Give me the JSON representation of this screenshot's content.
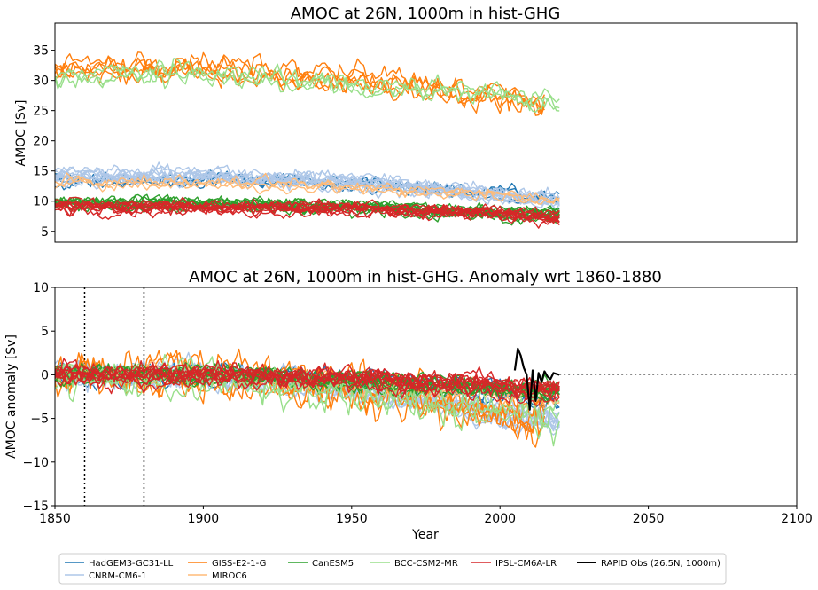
{
  "chart_data": [
    {
      "type": "line",
      "title": "AMOC at 26N, 1000m in hist-GHG",
      "xlabel": "",
      "ylabel": "AMOC [Sv]",
      "ylim": [
        3.2,
        39.5
      ],
      "yticks": [
        "5",
        "10",
        "15",
        "20",
        "25",
        "30",
        "35"
      ],
      "xlim": [
        1850,
        2100
      ],
      "grid": false,
      "series": [
        {
          "name": "HadGEM3-GC31-LL",
          "color": "#1f77b4",
          "members": 4,
          "x_start": 1850,
          "x_end": 2020,
          "levels": [
            [
              1850,
              13.2
            ],
            [
              1900,
              13.5
            ],
            [
              1950,
              12.8
            ],
            [
              2000,
              11.0
            ],
            [
              2020,
              10.0
            ]
          ],
          "noise": 1.0
        },
        {
          "name": "CNRM-CM6-1",
          "color": "#aec7e8",
          "members": 10,
          "x_start": 1850,
          "x_end": 2020,
          "levels": [
            [
              1850,
              14.0
            ],
            [
              1900,
              14.2
            ],
            [
              1950,
              13.2
            ],
            [
              2000,
              11.0
            ],
            [
              2020,
              10.0
            ]
          ],
          "noise": 1.1
        },
        {
          "name": "GISS-E2-1-G",
          "color": "#ff7f0e",
          "members": 5,
          "x_start": 1850,
          "x_end": 2015,
          "levels": [
            [
              1850,
              32.0
            ],
            [
              1900,
              32.0
            ],
            [
              1950,
              30.5
            ],
            [
              1990,
              28.0
            ],
            [
              2015,
              26.0
            ]
          ],
          "noise": 1.8
        },
        {
          "name": "MIROC6",
          "color": "#ffbb78",
          "members": 3,
          "x_start": 1850,
          "x_end": 2020,
          "levels": [
            [
              1850,
              12.8
            ],
            [
              1900,
              12.8
            ],
            [
              1950,
              12.0
            ],
            [
              2000,
              10.8
            ],
            [
              2020,
              10.2
            ]
          ],
          "noise": 0.9
        },
        {
          "name": "CanESM5",
          "color": "#2ca02c",
          "members": 10,
          "x_start": 1850,
          "x_end": 2020,
          "levels": [
            [
              1850,
              9.6
            ],
            [
              1900,
              9.5
            ],
            [
              1950,
              9.0
            ],
            [
              2000,
              8.0
            ],
            [
              2020,
              7.8
            ]
          ],
          "noise": 0.9
        },
        {
          "name": "BCC-CSM2-MR",
          "color": "#98df8a",
          "members": 3,
          "x_start": 1850,
          "x_end": 2020,
          "levels": [
            [
              1850,
              31.0
            ],
            [
              1900,
              31.5
            ],
            [
              1950,
              29.5
            ],
            [
              2000,
              28.0
            ],
            [
              2020,
              26.5
            ]
          ],
          "noise": 1.6
        },
        {
          "name": "IPSL-CM6A-LR",
          "color": "#d62728",
          "members": 10,
          "x_start": 1850,
          "x_end": 2020,
          "levels": [
            [
              1850,
              9.2
            ],
            [
              1900,
              9.0
            ],
            [
              1950,
              8.8
            ],
            [
              2000,
              8.0
            ],
            [
              2020,
              7.5
            ]
          ],
          "noise": 0.9
        }
      ]
    },
    {
      "type": "line",
      "title": "AMOC at 26N, 1000m in hist-GHG. Anomaly wrt 1860-1880",
      "xlabel": "Year",
      "ylabel": "AMOC anomaly [Sv]",
      "ylim": [
        -15,
        10
      ],
      "yticks": [
        "−15",
        "−10",
        "−5",
        "0",
        "5",
        "10"
      ],
      "xlim": [
        1850,
        2100
      ],
      "xticks": [
        "1850",
        "1900",
        "1950",
        "2000",
        "2050",
        "2100"
      ],
      "grid": false,
      "reference_period": [
        1860,
        1880
      ],
      "zero_line_from": 2020,
      "series": [
        {
          "name": "HadGEM3-GC31-LL",
          "color": "#1f77b4",
          "members": 4,
          "x_start": 1850,
          "x_end": 2020,
          "levels": [
            [
              1850,
              0
            ],
            [
              1900,
              0
            ],
            [
              1950,
              -0.5
            ],
            [
              2000,
              -2.0
            ],
            [
              2020,
              -3.0
            ]
          ],
          "noise": 1.0
        },
        {
          "name": "CNRM-CM6-1",
          "color": "#aec7e8",
          "members": 10,
          "x_start": 1850,
          "x_end": 2020,
          "levels": [
            [
              1850,
              0
            ],
            [
              1900,
              0.2
            ],
            [
              1950,
              -1.5
            ],
            [
              2000,
              -4.5
            ],
            [
              2020,
              -5.5
            ]
          ],
          "noise": 1.2
        },
        {
          "name": "GISS-E2-1-G",
          "color": "#ff7f0e",
          "members": 5,
          "x_start": 1850,
          "x_end": 2015,
          "levels": [
            [
              1850,
              0
            ],
            [
              1900,
              0
            ],
            [
              1950,
              -1.5
            ],
            [
              1995,
              -4.5
            ],
            [
              2015,
              -5.5
            ]
          ],
          "noise": 2.0
        },
        {
          "name": "MIROC6",
          "color": "#ffbb78",
          "members": 3,
          "x_start": 1850,
          "x_end": 2020,
          "levels": [
            [
              1850,
              0
            ],
            [
              1900,
              0
            ],
            [
              1950,
              -0.8
            ],
            [
              2000,
              -2.0
            ],
            [
              2020,
              -2.6
            ]
          ],
          "noise": 0.9
        },
        {
          "name": "CanESM5",
          "color": "#2ca02c",
          "members": 10,
          "x_start": 1850,
          "x_end": 2020,
          "levels": [
            [
              1850,
              0
            ],
            [
              1900,
              0
            ],
            [
              1950,
              -0.6
            ],
            [
              2000,
              -1.6
            ],
            [
              2020,
              -1.8
            ]
          ],
          "noise": 0.9
        },
        {
          "name": "BCC-CSM2-MR",
          "color": "#98df8a",
          "members": 3,
          "x_start": 1850,
          "x_end": 2020,
          "levels": [
            [
              1850,
              0
            ],
            [
              1900,
              0
            ],
            [
              1950,
              -2.0
            ],
            [
              2000,
              -3.5
            ],
            [
              2020,
              -5.0
            ]
          ],
          "noise": 1.8
        },
        {
          "name": "IPSL-CM6A-LR",
          "color": "#d62728",
          "members": 10,
          "x_start": 1850,
          "x_end": 2020,
          "levels": [
            [
              1850,
              0
            ],
            [
              1900,
              0
            ],
            [
              1950,
              -0.4
            ],
            [
              2000,
              -1.2
            ],
            [
              2020,
              -1.7
            ]
          ],
          "noise": 1.0
        },
        {
          "name": "RAPID Obs (26.5N, 1000m)",
          "color": "#000000",
          "x": [
            2005,
            2006,
            2007,
            2008,
            2009,
            2010,
            2011,
            2012,
            2013,
            2014,
            2015,
            2016,
            2017,
            2018,
            2019,
            2020
          ],
          "values": [
            0.5,
            3.0,
            2.2,
            0.8,
            0.0,
            -4.0,
            0.5,
            -3.0,
            0.2,
            -0.8,
            0.4,
            -0.2,
            -0.5,
            0.2,
            0.1,
            0.0
          ]
        }
      ]
    }
  ],
  "legend": {
    "placement": "bottom",
    "entries": [
      {
        "label": "HadGEM3-GC31-LL",
        "color": "#1f77b4"
      },
      {
        "label": "CNRM-CM6-1",
        "color": "#aec7e8"
      },
      {
        "label": "GISS-E2-1-G",
        "color": "#ff7f0e"
      },
      {
        "label": "MIROC6",
        "color": "#ffbb78"
      },
      {
        "label": "CanESM5",
        "color": "#2ca02c"
      },
      {
        "label": "BCC-CSM2-MR",
        "color": "#98df8a"
      },
      {
        "label": "IPSL-CM6A-LR",
        "color": "#d62728"
      },
      {
        "label": "RAPID Obs (26.5N, 1000m)",
        "color": "#000000"
      }
    ]
  }
}
